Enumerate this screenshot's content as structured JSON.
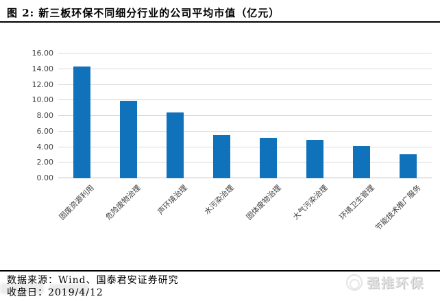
{
  "figure": {
    "title_prefix": "图 2:",
    "title_text": "新三板环保不同细分行业的公司平均市值（亿元）"
  },
  "chart_data": {
    "type": "bar",
    "title": "新三板环保不同细分行业的公司平均市值（亿元）",
    "categories": [
      "固废资源利用",
      "危险废物治理",
      "声环境治理",
      "水污染治理",
      "固体废物治理",
      "大气污染治理",
      "环境卫生管理",
      "节能技术推广服务"
    ],
    "values": [
      14.3,
      9.9,
      8.4,
      5.5,
      5.2,
      4.9,
      4.1,
      3.1
    ],
    "xlabel": "",
    "ylabel": "",
    "ylim": [
      0,
      16
    ],
    "ytick_step": 2,
    "ytick_decimals": 2,
    "grid": "horizontal",
    "legend": "none",
    "bar_color": "#1172BC",
    "gridline_color": "#D9D9D9",
    "axis_text_color": "#404040"
  },
  "footer": {
    "source_line": "数据来源：Wind、国泰君安证券研究",
    "close_date_line": "收盘日：2019/4/12",
    "watermark_text": "强推环保"
  }
}
